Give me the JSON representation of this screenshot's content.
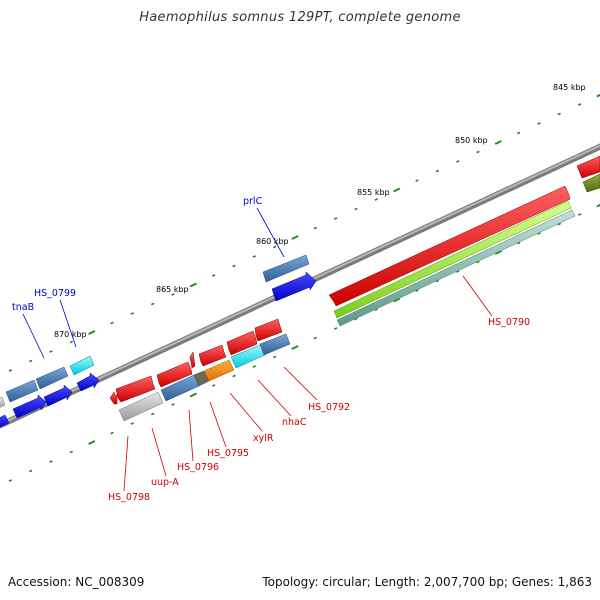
{
  "title": "Haemophilus somnus 129PT, complete genome",
  "footer": {
    "accession": "Accession: NC_008309",
    "summary": "Topology: circular; Length: 2,007,700 bp; Genes: 1,863"
  },
  "colors": {
    "backbone": "#8a8a8a",
    "forward_label": "#0000cc",
    "reverse_label": "#cc0000",
    "tick": "#228b22",
    "tick_label": "#000000"
  },
  "kbp_labels": [
    "845 kbp",
    "850 kbp",
    "855 kbp",
    "860 kbp",
    "865 kbp",
    "870 kbp"
  ],
  "genes": {
    "forward": [
      {
        "label": "prlC"
      },
      {
        "label": "HS_0799"
      },
      {
        "label": "tnaB"
      }
    ],
    "reverse": [
      {
        "label": "HS_0790"
      },
      {
        "label": "HS_0792"
      },
      {
        "label": "nhaC"
      },
      {
        "label": "xylR"
      },
      {
        "label": "HS_0795"
      },
      {
        "label": "HS_0796"
      },
      {
        "label": "uup-A"
      },
      {
        "label": "HS_0798"
      }
    ]
  }
}
